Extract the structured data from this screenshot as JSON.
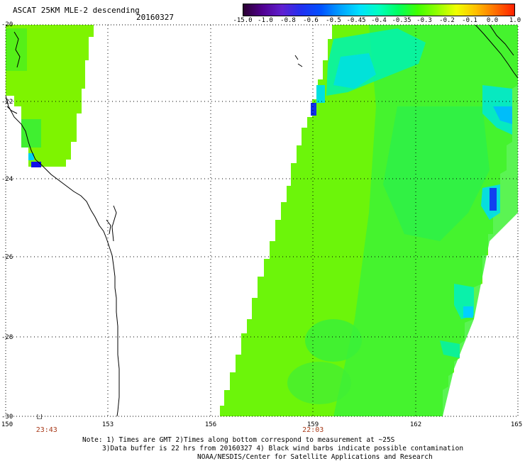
{
  "title": "ASCAT 25KM MLE-2 descending",
  "date": "20160327",
  "colorbar": {
    "labels": [
      "-15.0",
      "-1.0",
      "-0.8",
      "-0.6",
      "-0.5",
      "-0.45",
      "-0.4",
      "-0.35",
      "-0.3",
      "-0.2",
      "-0.1",
      "0.0",
      "1.0"
    ],
    "colors": [
      "#2a0030",
      "#500090",
      "#6020d0",
      "#2030f0",
      "#0050ff",
      "#00a0ff",
      "#00e0ff",
      "#00ffc0",
      "#00ff60",
      "#40ff00",
      "#90ff00",
      "#f0ff00",
      "#ffc000",
      "#ff7000",
      "#ff2000"
    ]
  },
  "map": {
    "lat_labels": [
      "-20",
      "-22",
      "-24",
      "-26",
      "-28",
      "-30"
    ],
    "lon_labels": [
      "150",
      "153",
      "156",
      "159",
      "162",
      "165"
    ],
    "pass_times": [
      {
        "lon": 151.2,
        "label": "23:43"
      },
      {
        "lon": 159.0,
        "label": "22:03"
      }
    ],
    "colors": {
      "land_line": "#000000",
      "grid": "#000000",
      "swath_green": "#60ff00",
      "swath_cyan": "#00ffc8",
      "swath_blue": "#0040ff"
    }
  },
  "notes": [
    "Note: 1) Times are GMT 2)Times along bottom correspond to measurement at ~25S",
    "3)Data buffer is 22 hrs from 20160327 4) Black wind barbs indicate possible contamination",
    "NOAA/NESDIS/Center for Satellite Applications and Research"
  ]
}
